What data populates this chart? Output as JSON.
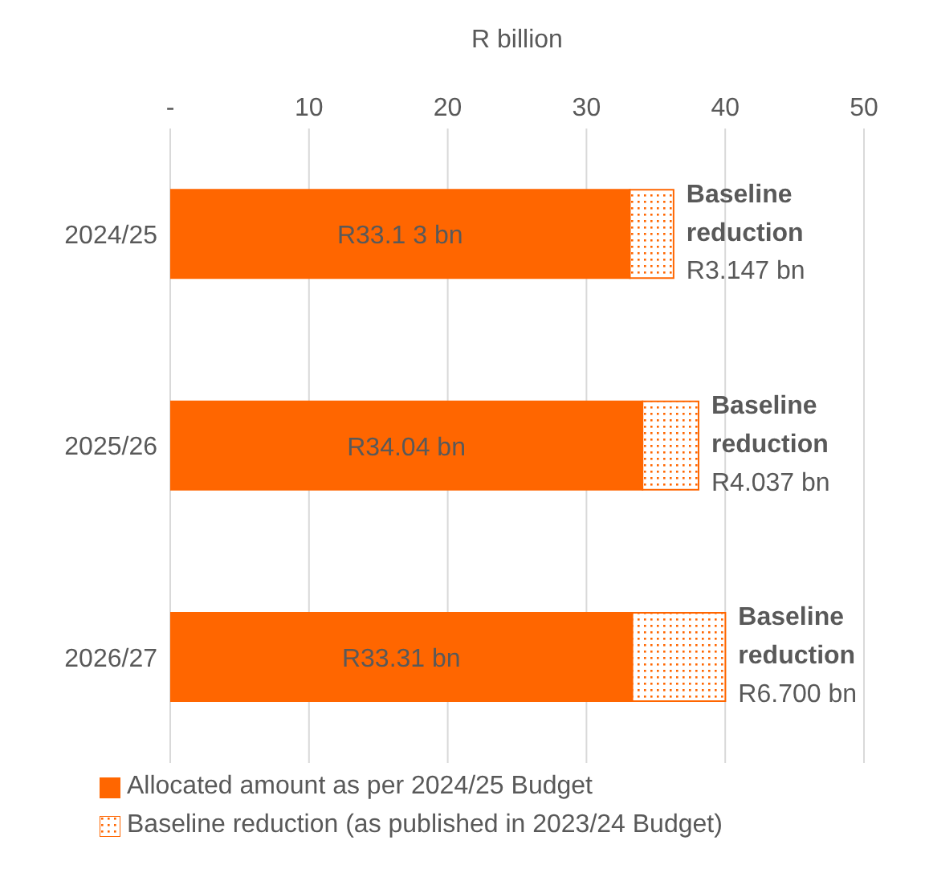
{
  "chart_data": {
    "type": "bar",
    "orientation": "horizontal",
    "stacked": true,
    "xlabel": "R billion",
    "categories": [
      "2024/25",
      "2025/26",
      "2026/27"
    ],
    "series": [
      {
        "name": "Allocated amount as per 2024/25 Budget",
        "color": "#ff6600",
        "values": [
          33.13,
          34.04,
          33.31
        ],
        "value_labels": [
          "R33.1 3 bn",
          "R34.04 bn",
          "R33.31 bn"
        ]
      },
      {
        "name": "Baseline reduction (as published in 2023/24 Budget)",
        "color": "#ff6600",
        "values": [
          3.147,
          4.037,
          6.7
        ],
        "value_labels": [
          "R3.147 bn",
          "R4.037 bn",
          "R6.700 bn"
        ]
      }
    ],
    "annotations": [
      {
        "text": "Baseline reduction",
        "x": 36.277,
        "y": "2024/25"
      },
      {
        "text": "Baseline reduction",
        "x": 38.077,
        "y": "2025/26"
      },
      {
        "text": "Baseline reduction",
        "x": 40.01,
        "y": "2026/27"
      }
    ],
    "xlim": [
      0,
      50
    ],
    "xticks": [
      {
        "value": 0,
        "label": "-"
      },
      10,
      20,
      30,
      40,
      50
    ],
    "grid": "x",
    "legend": "bottom"
  }
}
